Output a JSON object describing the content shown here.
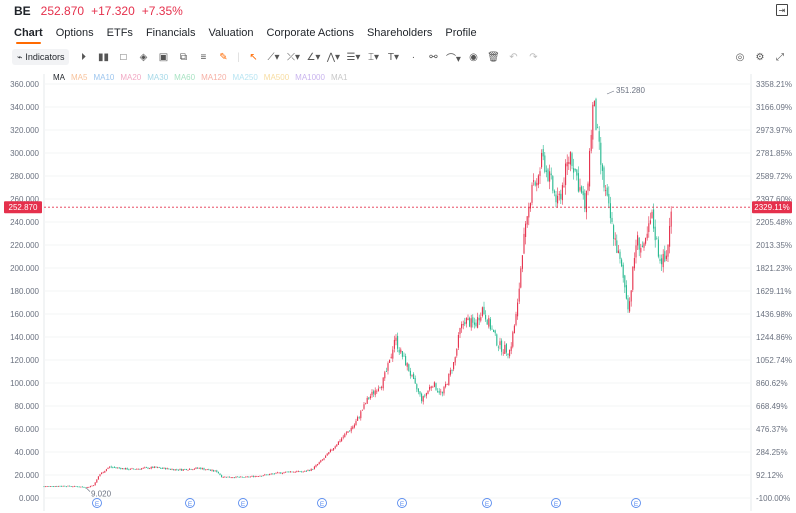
{
  "quote": {
    "symbol": "BE",
    "price": "252.870",
    "change": "+17.320",
    "change_pct": "+7.35%",
    "up_color": "#e5304c",
    "down_color": "#26b98f"
  },
  "tabs": [
    {
      "label": "Chart",
      "active": true
    },
    {
      "label": "Options"
    },
    {
      "label": "ETFs"
    },
    {
      "label": "Financials"
    },
    {
      "label": "Valuation"
    },
    {
      "label": "Corporate Actions"
    },
    {
      "label": "Shareholders"
    },
    {
      "label": "Profile"
    }
  ],
  "toolbar": {
    "indicators_label": "Indicators",
    "accent_color": "#ff6a00"
  },
  "ma_legend": [
    {
      "label": "MA",
      "color": "#1f2329"
    },
    {
      "label": "MA5",
      "color": "#f7c29b"
    },
    {
      "label": "MA10",
      "color": "#9cc5ee"
    },
    {
      "label": "MA20",
      "color": "#f2a9c4"
    },
    {
      "label": "MA30",
      "color": "#a6d9e8"
    },
    {
      "label": "MA60",
      "color": "#a8e3c3"
    },
    {
      "label": "MA120",
      "color": "#f6b0a5"
    },
    {
      "label": "MA250",
      "color": "#b7e4f2"
    },
    {
      "label": "MA500",
      "color": "#f7dca0"
    },
    {
      "label": "MA1000",
      "color": "#c9b4ee"
    },
    {
      "label": "MA1",
      "color": "#c8c8c8"
    }
  ],
  "chart_data": {
    "type": "candlestick",
    "y_ticks": [
      "360.000",
      "340.000",
      "320.000",
      "300.000",
      "280.000",
      "260.000",
      "240.000",
      "220.000",
      "200.000",
      "180.000",
      "160.000",
      "140.000",
      "120.000",
      "100.000",
      "80.000",
      "60.000",
      "40.000",
      "20.000",
      "0.000"
    ],
    "pct_ticks": [
      "3358.21%",
      "3166.09%",
      "2973.97%",
      "2781.85%",
      "2589.72%",
      "2397.60%",
      "2205.48%",
      "2013.35%",
      "1821.23%",
      "1629.11%",
      "1436.98%",
      "1244.86%",
      "1052.74%",
      "860.62%",
      "668.49%",
      "476.37%",
      "284.25%",
      "92.12%",
      "-100.00%"
    ],
    "ylim": [
      0,
      360
    ],
    "current_price": 252.87,
    "current_price_label": "252.870",
    "current_pct_label": "2329.11%",
    "high_label": "351.280",
    "low_label": "9.020",
    "earnings_marker": "E",
    "earnings_count": 9,
    "anchor_points": [
      [
        0,
        10.2
      ],
      [
        0.04,
        10.5
      ],
      [
        0.07,
        10.0
      ],
      [
        0.085,
        9.1
      ],
      [
        0.1,
        11.5
      ],
      [
        0.11,
        20.0
      ],
      [
        0.13,
        27.0
      ],
      [
        0.17,
        25.0
      ],
      [
        0.22,
        26.5
      ],
      [
        0.27,
        24.5
      ],
      [
        0.31,
        26.0
      ],
      [
        0.345,
        23.0
      ],
      [
        0.355,
        18.5
      ],
      [
        0.4,
        18.0
      ],
      [
        0.44,
        20.0
      ],
      [
        0.49,
        23.0
      ],
      [
        0.52,
        23.0
      ],
      [
        0.535,
        25.0
      ],
      [
        0.56,
        35.0
      ],
      [
        0.59,
        50.0
      ],
      [
        0.62,
        64.0
      ],
      [
        0.645,
        85.0
      ],
      [
        0.665,
        96.0
      ],
      [
        0.675,
        100.0
      ],
      [
        0.69,
        118.0
      ],
      [
        0.7,
        140.0
      ],
      [
        0.71,
        128.0
      ],
      [
        0.725,
        115.0
      ],
      [
        0.74,
        98.0
      ],
      [
        0.755,
        85.0
      ],
      [
        0.775,
        100.0
      ],
      [
        0.795,
        90.0
      ],
      [
        0.81,
        108.0
      ],
      [
        0.82,
        120.0
      ],
      [
        0.83,
        145.0
      ],
      [
        0.84,
        155.0
      ],
      [
        0.86,
        150.0
      ],
      [
        0.875,
        165.0
      ],
      [
        0.89,
        150.0
      ],
      [
        0.905,
        135.0
      ],
      [
        0.915,
        130.0
      ],
      [
        0.93,
        128.0
      ],
      [
        0.945,
        165.0
      ],
      [
        0.955,
        218.0
      ],
      [
        0.965,
        240.0
      ],
      [
        0.975,
        280.0
      ],
      [
        0.985,
        270.0
      ],
      [
        0.995,
        300.0
      ],
      [
        1.0,
        290.0
      ]
    ],
    "second_segment": [
      [
        0,
        290.0
      ],
      [
        0.1,
        255.0
      ],
      [
        0.2,
        300.0
      ],
      [
        0.32,
        250.0
      ],
      [
        0.38,
        345.0
      ],
      [
        0.45,
        280.0
      ],
      [
        0.52,
        240.0
      ],
      [
        0.6,
        200.0
      ],
      [
        0.66,
        165.0
      ],
      [
        0.72,
        225.0
      ],
      [
        0.78,
        215.0
      ],
      [
        0.84,
        245.0
      ],
      [
        0.9,
        210.0
      ],
      [
        0.95,
        205.0
      ],
      [
        1.0,
        252.87
      ]
    ]
  }
}
